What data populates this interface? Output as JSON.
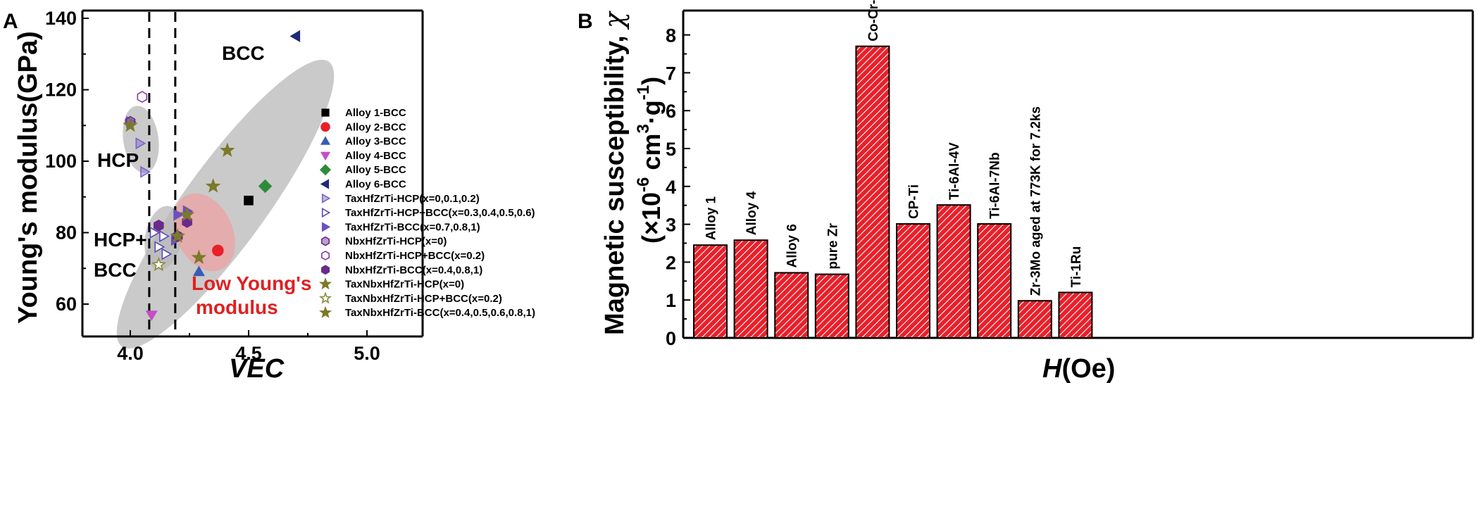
{
  "chart_data": [
    {
      "panel": "A",
      "type": "scatter",
      "xlabel": "VEC",
      "ylabel": "Young's modulus(GPa)",
      "xlim": [
        3.8,
        5.25
      ],
      "ylim": [
        50,
        140
      ],
      "xticks": [
        "4.0",
        "4.5",
        "5.0"
      ],
      "xtick_values": [
        4.0,
        4.5,
        5.0
      ],
      "yticks": [
        "60",
        "80",
        "100",
        "120",
        "140"
      ],
      "ytick_values": [
        60,
        80,
        100,
        120,
        140
      ],
      "vlines": [
        4.08,
        4.19
      ],
      "regions": {
        "bcc": "BCC",
        "hcp": "HCP",
        "hcp_bcc_line1": "HCP+",
        "hcp_bcc_line2": "BCC",
        "low_line1": "Low Young's",
        "low_line2": "modulus"
      },
      "series": [
        {
          "name": "Alloy 1-BCC",
          "marker": "square",
          "color": "#000000",
          "fill": true,
          "points": [
            [
              4.5,
              89
            ]
          ]
        },
        {
          "name": "Alloy 2-BCC",
          "marker": "circle",
          "color": "#e8202a",
          "fill": true,
          "points": [
            [
              4.37,
              75
            ]
          ]
        },
        {
          "name": "Alloy 3-BCC",
          "marker": "triangle-up",
          "color": "#3a5bb7",
          "fill": true,
          "points": [
            [
              4.29,
              69
            ]
          ]
        },
        {
          "name": "Alloy 4-BCC",
          "marker": "triangle-down",
          "color": "#c64ec8",
          "fill": true,
          "points": [
            [
              4.09,
              57
            ]
          ]
        },
        {
          "name": "Alloy 5-BCC",
          "marker": "diamond",
          "color": "#2e8b3a",
          "fill": true,
          "points": [
            [
              4.57,
              93
            ]
          ]
        },
        {
          "name": "Alloy 6-BCC",
          "marker": "triangle-left",
          "color": "#1f2a78",
          "fill": true,
          "points": [
            [
              4.7,
              135
            ]
          ]
        },
        {
          "name": "TaxHfZrTi-HCP(x=0,0.1,0.2)",
          "marker": "triangle-right",
          "color": "#7a62c8",
          "fill": "half",
          "points": [
            [
              4.0,
              111
            ],
            [
              4.04,
              105
            ],
            [
              4.06,
              97
            ]
          ]
        },
        {
          "name": "TaxHfZrTi-HCP+BCC(x=0.3,0.4,0.5,0.6)",
          "marker": "triangle-right",
          "color": "#5a4ab8",
          "fill": false,
          "points": [
            [
              4.12,
              76
            ],
            [
              4.14,
              79
            ],
            [
              4.15,
              74
            ],
            [
              4.1,
              80
            ]
          ]
        },
        {
          "name": "TaxHfZrTi-BCC(x=0.7,0.8,1)",
          "marker": "triangle-right",
          "color": "#6a50c0",
          "fill": true,
          "points": [
            [
              4.2,
              85
            ],
            [
              4.19,
              78
            ],
            [
              4.24,
              86
            ]
          ]
        },
        {
          "name": "NbxHfZrTi-HCP(x=0)",
          "marker": "hexagon",
          "color": "#6a2a8a",
          "fill": "half",
          "points": [
            [
              4.0,
              111
            ]
          ]
        },
        {
          "name": "NbxHfZrTi-HCP+BCC(x=0.2)",
          "marker": "hexagon",
          "color": "#8a3aa8",
          "fill": false,
          "points": [
            [
              4.05,
              118
            ]
          ]
        },
        {
          "name": "NbxHfZrTi-BCC(x=0.4,0.8,1)",
          "marker": "hexagon",
          "color": "#6a2a8a",
          "fill": true,
          "points": [
            [
              4.12,
              82
            ],
            [
              4.2,
              79
            ],
            [
              4.24,
              83
            ]
          ]
        },
        {
          "name": "TaxNbxHfZrTi-HCP(x=0)",
          "marker": "star",
          "color": "#7a7a2a",
          "fill": true,
          "points": [
            [
              4.0,
              110
            ]
          ]
        },
        {
          "name": "TaxNbxHfZrTi-HCP+BCC(x=0.2)",
          "marker": "star",
          "color": "#8a8a3a",
          "fill": false,
          "points": [
            [
              4.12,
              71
            ]
          ]
        },
        {
          "name": "TaxNbxHfZrTi-BCC(x=0.4,0.5,0.6,0.8,1)",
          "marker": "star",
          "color": "#7a7a2a",
          "fill": true,
          "points": [
            [
              4.41,
              103
            ],
            [
              4.35,
              93
            ],
            [
              4.24,
              85
            ],
            [
              4.29,
              73
            ],
            [
              4.2,
              79
            ]
          ]
        }
      ]
    },
    {
      "panel": "B",
      "type": "bar",
      "xlabel": "H(Oe)",
      "ylabel": "Magnetic susceptibility, χ (×10⁻⁶ cm³·g⁻¹)",
      "ylim": [
        0,
        8.4
      ],
      "yticks": [
        "0",
        "1",
        "2",
        "3",
        "4",
        "5",
        "6",
        "7",
        "8"
      ],
      "categories": [
        "Alloy 1",
        "Alloy 4",
        "Alloy 6",
        "pure Zr",
        "Co-Cr-Mo",
        "CP-Ti",
        "Ti-6Al-4V",
        "Ti-6Al-7Nb",
        "Zr-3Mo aged at 773K for 7.2ks",
        "Ti-1Ru"
      ],
      "values": [
        2.45,
        2.58,
        1.72,
        1.68,
        7.7,
        3.01,
        3.51,
        3.01,
        0.98,
        1.2
      ],
      "bar_color": "#e8202a"
    }
  ],
  "panels": {
    "a_letter": "A",
    "b_letter": "B"
  },
  "ylabel_b": {
    "main": "Magnetic susceptibility,",
    "chi": "χ",
    "open": "(×10",
    "exp1": "-6",
    "mid": " cm",
    "exp2": "3",
    "dot": "·g",
    "exp3": "-1",
    "close": ")"
  },
  "xlabel_b": {
    "italic": "H",
    "rest": "(Oe)"
  }
}
